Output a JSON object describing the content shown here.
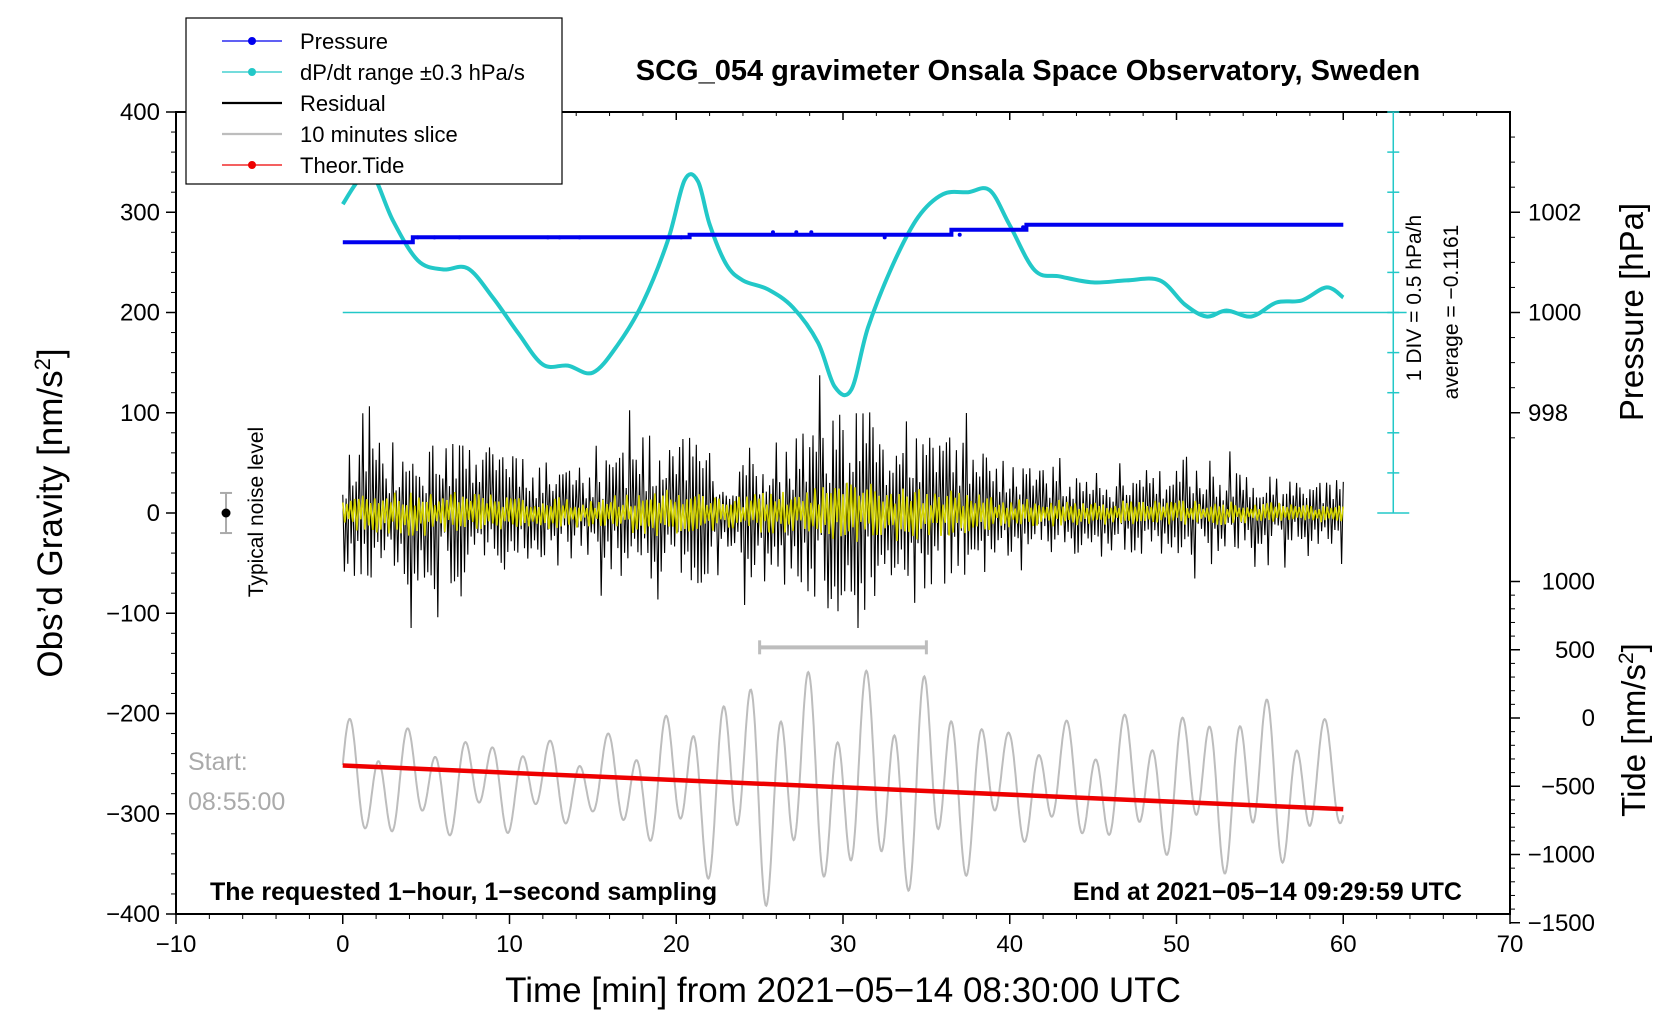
{
  "chart_data": {
    "type": "line",
    "title": "SCG_054 gravimeter Onsala Space Observatory, Sweden",
    "xlabel": "Time [min] from 2021−05−14 08:30:00 UTC",
    "ylabel_left": "Obs’d Gravity [nm/s²]",
    "ylabel_right_top": "Pressure [hPa]",
    "ylabel_right_bottom": "Tide [nm/s²]",
    "xlim": [
      -10,
      70
    ],
    "ylim": [
      -400,
      400
    ],
    "pressure_ylim": [
      996,
      1004
    ],
    "tide_ylim": [
      -1500,
      1000
    ],
    "x_ticks": [
      "−10",
      "0",
      "10",
      "20",
      "30",
      "40",
      "50",
      "60",
      "70"
    ],
    "y_ticks_left": [
      "400",
      "300",
      "200",
      "100",
      "0",
      "−100",
      "−200",
      "−300",
      "−400"
    ],
    "pressure_ticks": [
      "1002",
      "1000",
      "998"
    ],
    "tide_ticks": [
      "1000",
      "500",
      "0",
      "−500",
      "−1000",
      "−1500"
    ],
    "legend": [
      {
        "label": "Pressure",
        "color": "#0000ee",
        "marker": true
      },
      {
        "label": "dP/dt range ±0.3 hPa/s",
        "color": "#22c8c8",
        "marker": true
      },
      {
        "label": "Residual",
        "color": "#000000",
        "marker": false
      },
      {
        "label": "10 minutes slice",
        "color": "#bdbdbd",
        "marker": false
      },
      {
        "label": "Theor.Tide",
        "color": "#ee0000",
        "marker": true
      }
    ],
    "legend_position": "top-left",
    "annotations": {
      "noise": "Typical noise level",
      "start_label": "Start:",
      "start_time": "08:55:00",
      "sampling": "The requested 1−hour, 1−second sampling",
      "end": "End at 2021−05−14 09:29:59 UTC",
      "div": "1 DIV = 0.5 hPa/h",
      "average": "average = −0.1161"
    },
    "noise_level": {
      "x": -7,
      "center": 0,
      "half_range": 20
    },
    "slice_range": [
      25,
      35
    ],
    "pressure_baseline": 200,
    "pressure_series": [
      {
        "x": 0,
        "y": 1001.4
      },
      {
        "x": 4.2,
        "y": 1001.4
      },
      {
        "x": 4.2,
        "y": 1001.5
      },
      {
        "x": 20.8,
        "y": 1001.5
      },
      {
        "x": 20.8,
        "y": 1001.55
      },
      {
        "x": 36.5,
        "y": 1001.55
      },
      {
        "x": 36.5,
        "y": 1001.65
      },
      {
        "x": 41,
        "y": 1001.65
      },
      {
        "x": 41,
        "y": 1001.75
      },
      {
        "x": 60,
        "y": 1001.75
      }
    ],
    "dpdt_series": {
      "x": [
        0,
        1,
        1.8,
        3,
        4.5,
        6,
        7.5,
        9,
        10.5,
        12,
        13.5,
        15,
        16.5,
        18,
        19.5,
        20.5,
        21.3,
        22,
        23,
        24,
        25.5,
        27,
        28.5,
        29.5,
        30.5,
        31.5,
        33,
        34.5,
        36,
        37.5,
        38.8,
        40,
        41.5,
        43,
        45,
        47,
        49,
        50.5,
        51.8,
        53,
        54.5,
        56,
        57.5,
        59,
        60
      ],
      "y": [
        308,
        333,
        338,
        292,
        252,
        243,
        244,
        215,
        180,
        148,
        147,
        140,
        168,
        210,
        272,
        332,
        331,
        288,
        248,
        232,
        223,
        205,
        170,
        126,
        123,
        185,
        248,
        295,
        318,
        320,
        322,
        287,
        242,
        236,
        230,
        232,
        232,
        208,
        196,
        202,
        196,
        210,
        212,
        225,
        215
      ]
    },
    "tide_series": {
      "x": [
        0,
        60
      ],
      "y": [
        -348,
        -668
      ]
    },
    "residual_amplitude": {
      "x": [
        0,
        5,
        10,
        15,
        19,
        23,
        27,
        30,
        33,
        37,
        40,
        45,
        50,
        55,
        60
      ],
      "y": [
        55,
        75,
        55,
        45,
        80,
        55,
        70,
        95,
        90,
        70,
        45,
        40,
        40,
        35,
        30
      ]
    },
    "slice_amplitude": {
      "x": [
        0,
        5,
        10,
        15,
        20,
        25,
        30,
        35,
        40,
        45,
        50,
        55,
        60
      ],
      "y": [
        60,
        50,
        45,
        40,
        70,
        115,
        100,
        110,
        55,
        60,
        70,
        90,
        50
      ]
    },
    "slice_center": -270
  }
}
